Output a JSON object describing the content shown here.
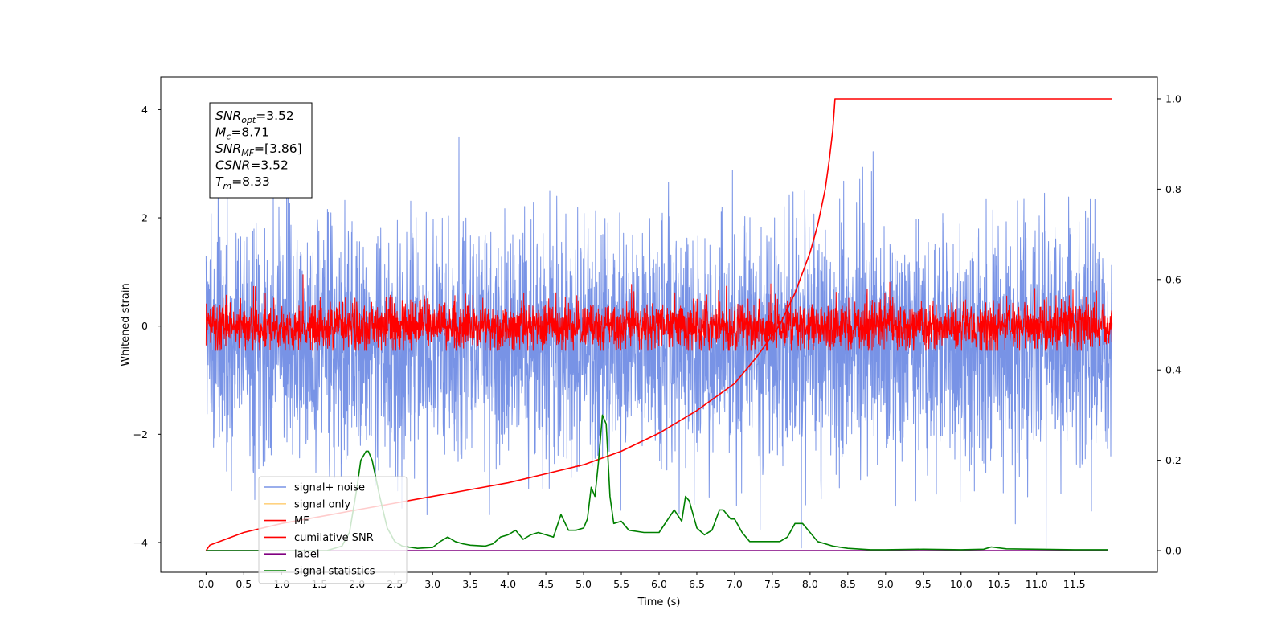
{
  "chart_data": {
    "type": "line",
    "xlabel": "Time (s)",
    "ylabel": "Whitened strain",
    "y2label": "",
    "xlim": [
      -0.6,
      12.6
    ],
    "ylim": [
      -4.55,
      4.6
    ],
    "y2lim": [
      -0.048,
      1.048
    ],
    "x_ticks": [
      0.0,
      0.5,
      1.0,
      1.5,
      2.0,
      2.5,
      3.0,
      3.5,
      4.0,
      4.5,
      5.0,
      5.5,
      6.0,
      6.5,
      7.0,
      7.5,
      8.0,
      8.5,
      9.0,
      9.5,
      10.0,
      10.5,
      11.0,
      11.5
    ],
    "x_tick_labels": [
      "0.0",
      "0.5",
      "1.0",
      "1.5",
      "2.0",
      "2.5",
      "3.0",
      "3.5",
      "4.0",
      "4.5",
      "5.0",
      "5.5",
      "6.0",
      "6.5",
      "7.0",
      "7.5",
      "8.0",
      "8.5",
      "9.0",
      "9.5",
      "10.0",
      "10.5",
      "11.0",
      "11.5"
    ],
    "y_ticks": [
      -4,
      -2,
      0,
      2,
      4
    ],
    "y_tick_labels": [
      "−4",
      "−2",
      "0",
      "2",
      "4"
    ],
    "y2_ticks": [
      0.0,
      0.2,
      0.4,
      0.6,
      0.8,
      1.0
    ],
    "y2_tick_labels": [
      "0.0",
      "0.2",
      "0.4",
      "0.6",
      "0.8",
      "1.0"
    ],
    "grid": false,
    "legend_position": "bottom-left",
    "legend": [
      {
        "name": "signal+ noise",
        "color": "#7893e6"
      },
      {
        "name": "signal only",
        "color": "#ffd280"
      },
      {
        "name": "MF",
        "color": "#ff0000"
      },
      {
        "name": "cumilative SNR",
        "color": "#ff0000"
      },
      {
        "name": "label",
        "color": "#800080"
      },
      {
        "name": "signal statistics",
        "color": "#008000"
      }
    ],
    "annotation": {
      "lines": [
        {
          "base": "SNR",
          "sub": "opt",
          "rest": "=3.52"
        },
        {
          "base": "M",
          "sub": "c",
          "rest": "=8.71"
        },
        {
          "base": "SNR",
          "sub": "MF",
          "rest": "=[3.86]"
        },
        {
          "base": "CSNR",
          "sub": "",
          "rest": "=3.52"
        },
        {
          "base": "T",
          "sub": "m",
          "rest": "=8.33"
        }
      ]
    },
    "series": [
      {
        "name": "signal+ noise",
        "axis": "left",
        "color": "#7893e6",
        "x_range": [
          0.0,
          12.0
        ],
        "noise": {
          "mean": -0.3,
          "std": 1.1,
          "min": -4.1,
          "max": 4.15,
          "seed": 7
        }
      },
      {
        "name": "MF",
        "axis": "left",
        "color": "#ff0000",
        "x_range": [
          0.0,
          12.0
        ],
        "noise": {
          "mean": 0.0,
          "std": 0.22,
          "min": -0.45,
          "max": 0.95,
          "seed": 13
        }
      },
      {
        "name": "cumilative SNR",
        "axis": "right",
        "color": "#ff0000",
        "x": [
          0.0,
          0.05,
          0.5,
          1.0,
          1.5,
          2.0,
          2.5,
          3.0,
          3.5,
          4.0,
          4.5,
          5.0,
          5.5,
          6.0,
          6.5,
          7.0,
          7.3,
          7.6,
          7.8,
          8.0,
          8.1,
          8.2,
          8.25,
          8.3,
          8.33,
          12.0
        ],
        "values": [
          0.0,
          0.012,
          0.04,
          0.06,
          0.075,
          0.09,
          0.105,
          0.12,
          0.135,
          0.15,
          0.17,
          0.19,
          0.22,
          0.26,
          0.31,
          0.37,
          0.43,
          0.5,
          0.57,
          0.66,
          0.72,
          0.8,
          0.86,
          0.93,
          1.0,
          1.0
        ]
      },
      {
        "name": "label",
        "axis": "right",
        "color": "#800080",
        "x": [
          0.0,
          11.95
        ],
        "values": [
          0.0,
          0.0
        ]
      },
      {
        "name": "signal statistics",
        "axis": "right",
        "color": "#008000",
        "x": [
          0.0,
          1.6,
          1.8,
          1.9,
          2.0,
          2.05,
          2.12,
          2.15,
          2.2,
          2.25,
          2.3,
          2.4,
          2.5,
          2.6,
          2.8,
          3.0,
          3.1,
          3.2,
          3.3,
          3.4,
          3.5,
          3.7,
          3.8,
          3.9,
          4.0,
          4.1,
          4.2,
          4.3,
          4.4,
          4.5,
          4.6,
          4.7,
          4.8,
          4.9,
          5.0,
          5.05,
          5.1,
          5.15,
          5.2,
          5.25,
          5.3,
          5.35,
          5.4,
          5.5,
          5.6,
          5.8,
          6.0,
          6.2,
          6.3,
          6.35,
          6.4,
          6.5,
          6.6,
          6.7,
          6.8,
          6.85,
          6.95,
          7.0,
          7.1,
          7.2,
          7.3,
          7.4,
          7.5,
          7.6,
          7.7,
          7.8,
          7.9,
          8.0,
          8.1,
          8.3,
          8.5,
          8.8,
          9.0,
          9.5,
          10.0,
          10.3,
          10.4,
          10.6,
          11.0,
          11.5,
          11.95
        ],
        "values": [
          0.0,
          0.0,
          0.01,
          0.04,
          0.14,
          0.2,
          0.22,
          0.22,
          0.2,
          0.16,
          0.12,
          0.05,
          0.02,
          0.01,
          0.005,
          0.007,
          0.02,
          0.03,
          0.02,
          0.015,
          0.012,
          0.01,
          0.015,
          0.03,
          0.035,
          0.045,
          0.025,
          0.035,
          0.04,
          0.035,
          0.03,
          0.08,
          0.045,
          0.045,
          0.05,
          0.07,
          0.14,
          0.12,
          0.2,
          0.3,
          0.28,
          0.12,
          0.06,
          0.065,
          0.045,
          0.04,
          0.04,
          0.09,
          0.065,
          0.12,
          0.11,
          0.05,
          0.035,
          0.045,
          0.09,
          0.09,
          0.07,
          0.07,
          0.04,
          0.02,
          0.02,
          0.02,
          0.02,
          0.02,
          0.03,
          0.06,
          0.06,
          0.04,
          0.02,
          0.01,
          0.005,
          0.002,
          0.002,
          0.003,
          0.002,
          0.003,
          0.008,
          0.004,
          0.003,
          0.002,
          0.002
        ]
      }
    ]
  }
}
